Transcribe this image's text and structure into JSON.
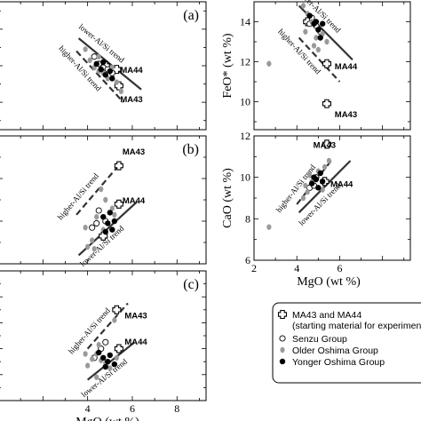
{
  "chart_data": [
    {
      "panel": "(a)",
      "type": "scatter",
      "xlim": [
        0,
        9.3
      ],
      "ylim": [
        8.5,
        15.5
      ],
      "xticks": [],
      "yticks": [],
      "xlabel": "",
      "ylabel": "",
      "lines": [
        {
          "name": "lower-Al/Si trend",
          "style": "solid",
          "x": [
            3.6,
            6.4
          ],
          "y": [
            13.5,
            10.7
          ]
        },
        {
          "name": "higher-Al/Si trend",
          "style": "dashed",
          "x": [
            3.5,
            5.6
          ],
          "y": [
            12.8,
            10.0
          ]
        }
      ],
      "annotations": [
        {
          "text": "MA44",
          "x": 5.3,
          "y": 11.8
        },
        {
          "text": "MA43",
          "x": 5.3,
          "y": 10.2
        }
      ],
      "series": [
        {
          "name": "MA43 and MA44",
          "marker": "cross",
          "points": [
            [
              4.8,
              12.0
            ],
            [
              5.3,
              11.8
            ],
            [
              5.4,
              10.9
            ]
          ]
        },
        {
          "name": "Senzu Group",
          "marker": "open",
          "points": [
            [
              4.3,
              12.5
            ],
            [
              4.5,
              12.1
            ],
            [
              4.7,
              11.9
            ],
            [
              4.9,
              11.8
            ],
            [
              5.1,
              11.6
            ]
          ]
        },
        {
          "name": "Older Oshima Group",
          "marker": "gray",
          "points": [
            [
              -0.3,
              14.1
            ],
            [
              -0.3,
              11.3
            ],
            [
              3.9,
              12.9
            ],
            [
              4.1,
              12.3
            ],
            [
              4.3,
              11.9
            ],
            [
              4.5,
              12.5
            ],
            [
              4.7,
              11.6
            ],
            [
              4.9,
              11.3
            ],
            [
              5.1,
              11.9
            ],
            [
              5.3,
              11.1
            ],
            [
              5.5,
              10.6
            ],
            [
              4.5,
              11.7
            ]
          ]
        },
        {
          "name": "Yonger Oshima Group",
          "marker": "filled",
          "points": [
            [
              4.4,
              12.1
            ],
            [
              4.6,
              11.8
            ],
            [
              4.8,
              11.5
            ],
            [
              5.0,
              11.7
            ],
            [
              5.1,
              11.3
            ],
            [
              4.7,
              12.2
            ]
          ]
        }
      ]
    },
    {
      "panel": "",
      "type": "scatter",
      "xlim": [
        2,
        9.3
      ],
      "ylim": [
        8.6,
        15
      ],
      "xticks": [],
      "yticks": [
        8,
        10,
        12,
        14
      ],
      "xlabel": "",
      "ylabel": "FeO* (wt %)",
      "lines": [
        {
          "name": "lower-Al/Si trend",
          "style": "solid",
          "x": [
            4.1,
            6.6
          ],
          "y": [
            14.8,
            12.1
          ]
        },
        {
          "name": "higher-Al/Si trend",
          "style": "dashed",
          "x": [
            4.1,
            6.0
          ],
          "y": [
            13.2,
            11.0
          ]
        }
      ],
      "annotations": [
        {
          "text": "MA44",
          "x": 5.6,
          "y": 11.8
        },
        {
          "text": "MA43",
          "x": 5.6,
          "y": 9.4
        }
      ],
      "series": [
        {
          "name": "MA43 and MA44",
          "marker": "cross",
          "points": [
            [
              4.5,
              14.0
            ],
            [
              5.4,
              11.9
            ],
            [
              5.4,
              9.9
            ]
          ]
        },
        {
          "name": "Senzu Group",
          "marker": "open",
          "points": [
            [
              4.7,
              14.2
            ],
            [
              4.9,
              13.8
            ],
            [
              5.1,
              13.5
            ],
            [
              4.6,
              13.9
            ]
          ]
        },
        {
          "name": "Older Oshima Group",
          "marker": "gray",
          "points": [
            [
              2.7,
              11.9
            ],
            [
              4.3,
              14.8
            ],
            [
              4.5,
              14.4
            ],
            [
              4.7,
              14.0
            ],
            [
              4.9,
              13.2
            ],
            [
              5.2,
              13.4
            ],
            [
              5.4,
              13.0
            ],
            [
              4.4,
              13.5
            ],
            [
              4.8,
              12.8
            ],
            [
              5.0,
              12.6
            ]
          ]
        },
        {
          "name": "Yonger Oshima Group",
          "marker": "filled",
          "points": [
            [
              4.6,
              14.3
            ],
            [
              4.8,
              13.9
            ],
            [
              5.0,
              13.6
            ],
            [
              5.2,
              13.9
            ],
            [
              4.9,
              14.0
            ],
            [
              5.1,
              13.2
            ]
          ]
        }
      ]
    },
    {
      "panel": "(b)",
      "type": "scatter",
      "xlim": [
        0,
        9.3
      ],
      "ylim": [
        6.0,
        12.0
      ],
      "xticks": [],
      "yticks": [],
      "xlabel": "",
      "ylabel": "",
      "lines": [
        {
          "name": "higher-Al/Si trend",
          "style": "dashed",
          "x": [
            3.5,
            5.3
          ],
          "y": [
            8.3,
            10.5
          ]
        },
        {
          "name": "lower-Al/Si trend",
          "style": "solid",
          "x": [
            3.6,
            6.2
          ],
          "y": [
            6.4,
            8.9
          ]
        }
      ],
      "annotations": [
        {
          "text": "MA43",
          "x": 5.4,
          "y": 11.3
        },
        {
          "text": "MA44",
          "x": 5.4,
          "y": 9.0
        }
      ],
      "series": [
        {
          "name": "MA43 and MA44",
          "marker": "cross",
          "points": [
            [
              5.4,
              10.6
            ],
            [
              5.4,
              8.8
            ],
            [
              4.7,
              7.3
            ]
          ]
        },
        {
          "name": "Senzu Group",
          "marker": "open",
          "points": [
            [
              4.5,
              8.5
            ],
            [
              4.8,
              8.0
            ],
            [
              4.2,
              7.7
            ],
            [
              4.4,
              7.9
            ]
          ]
        },
        {
          "name": "Older Oshima Group",
          "marker": "gray",
          "points": [
            [
              -0.3,
              7.4
            ],
            [
              4.0,
              6.8
            ],
            [
              4.2,
              7.1
            ],
            [
              4.6,
              9.5
            ],
            [
              4.8,
              9.0
            ],
            [
              5.1,
              8.6
            ],
            [
              3.9,
              7.7
            ],
            [
              4.4,
              8.2
            ],
            [
              4.7,
              7.6
            ],
            [
              5.2,
              8.3
            ],
            [
              4.3,
              6.7
            ]
          ]
        },
        {
          "name": "Yonger Oshima Group",
          "marker": "filled",
          "points": [
            [
              4.7,
              8.2
            ],
            [
              4.9,
              7.9
            ],
            [
              5.1,
              7.6
            ],
            [
              5.0,
              8.4
            ],
            [
              4.8,
              7.5
            ],
            [
              5.2,
              8.0
            ]
          ]
        }
      ]
    },
    {
      "panel": "",
      "type": "scatter",
      "xlim": [
        2,
        9.3
      ],
      "ylim": [
        6,
        12
      ],
      "xticks": [
        2,
        4,
        6
      ],
      "yticks": [
        6,
        8,
        10,
        12
      ],
      "xlabel": "MgO (wt %)",
      "ylabel": "CaO (wt %)",
      "lines": [
        {
          "name": "higher-Al/Si trend",
          "style": "dashed",
          "x": [
            4.0,
            5.6
          ],
          "y": [
            8.7,
            10.8
          ]
        },
        {
          "name": "lower-Al/Si trend",
          "style": "solid",
          "x": [
            4.1,
            6.5
          ],
          "y": [
            8.3,
            10.8
          ]
        }
      ],
      "annotations": [
        {
          "text": "MA43",
          "x": 4.6,
          "y": 11.6
        },
        {
          "text": "MA44",
          "x": 5.4,
          "y": 9.7
        }
      ],
      "series": [
        {
          "name": "MA43 and MA44",
          "marker": "cross",
          "points": [
            [
              5.4,
              11.6
            ],
            [
              5.3,
              9.8
            ]
          ]
        },
        {
          "name": "Senzu Group",
          "marker": "open",
          "points": [
            [
              4.6,
              9.5
            ],
            [
              4.8,
              9.6
            ],
            [
              4.9,
              10.0
            ]
          ]
        },
        {
          "name": "Older Oshima Group",
          "marker": "gray",
          "points": [
            [
              2.7,
              7.6
            ],
            [
              4.3,
              9.0
            ],
            [
              4.5,
              9.3
            ],
            [
              4.7,
              9.8
            ],
            [
              5.0,
              10.3
            ],
            [
              5.3,
              10.5
            ],
            [
              5.5,
              10.8
            ],
            [
              4.6,
              10.1
            ],
            [
              5.2,
              9.4
            ],
            [
              4.4,
              9.6
            ]
          ]
        },
        {
          "name": "Yonger Oshima Group",
          "marker": "filled",
          "points": [
            [
              4.7,
              9.7
            ],
            [
              4.9,
              9.9
            ],
            [
              5.1,
              10.2
            ],
            [
              5.0,
              9.5
            ],
            [
              4.8,
              10.0
            ],
            [
              5.2,
              9.8
            ]
          ]
        }
      ]
    },
    {
      "panel": "(c)",
      "type": "scatter",
      "xlim": [
        0,
        9.3
      ],
      "ylim": [
        0,
        10
      ],
      "xticks": [
        4,
        6,
        8
      ],
      "yticks": [],
      "xlabel": "MgO (wt %)",
      "ylabel": "",
      "lines": [
        {
          "name": "higher-Al/Si trend",
          "style": "dashed",
          "x": [
            4.0,
            5.8
          ],
          "y": [
            4.0,
            7.5
          ]
        },
        {
          "name": "lower-Al/Si trend",
          "style": "solid",
          "x": [
            4.0,
            6.1
          ],
          "y": [
            1.6,
            4.5
          ]
        }
      ],
      "annotations": [
        {
          "text": "MA43",
          "x": 5.5,
          "y": 6.6
        },
        {
          "text": "MA44",
          "x": 5.5,
          "y": 4.6
        }
      ],
      "series": [
        {
          "name": "MA43 and MA44",
          "marker": "cross",
          "points": [
            [
              5.3,
              7.0
            ],
            [
              5.4,
              4.0
            ]
          ]
        },
        {
          "name": "Senzu Group",
          "marker": "open",
          "points": [
            [
              4.6,
              4.0
            ],
            [
              4.8,
              4.5
            ],
            [
              4.3,
              3.3
            ]
          ]
        },
        {
          "name": "Older Oshima Group",
          "marker": "gray",
          "points": [
            [
              -0.2,
              1.7
            ],
            [
              4.0,
              2.7
            ],
            [
              4.2,
              3.2
            ],
            [
              4.4,
              3.6
            ],
            [
              4.6,
              3.1
            ],
            [
              4.8,
              2.9
            ],
            [
              5.0,
              2.5
            ],
            [
              5.3,
              3.3
            ],
            [
              4.5,
              4.3
            ],
            [
              5.2,
              6.2
            ],
            [
              4.4,
              1.8
            ],
            [
              3.9,
              3.6
            ]
          ]
        },
        {
          "name": "Yonger Oshima Group",
          "marker": "filled",
          "points": [
            [
              4.5,
              3.7
            ],
            [
              4.7,
              3.3
            ],
            [
              4.9,
              3.0
            ],
            [
              5.0,
              3.5
            ],
            [
              4.8,
              2.6
            ],
            [
              5.2,
              2.8
            ]
          ]
        }
      ]
    }
  ],
  "legend": {
    "placement": "bottom-right",
    "entries": [
      {
        "marker": "cross",
        "text": "MA43 and MA44",
        "note": "(starting material for experiment"
      },
      {
        "marker": "open",
        "text": "Senzu Group"
      },
      {
        "marker": "gray",
        "text": "Older Oshima Group"
      },
      {
        "marker": "filled",
        "text": "Yonger Oshima Group"
      }
    ]
  }
}
